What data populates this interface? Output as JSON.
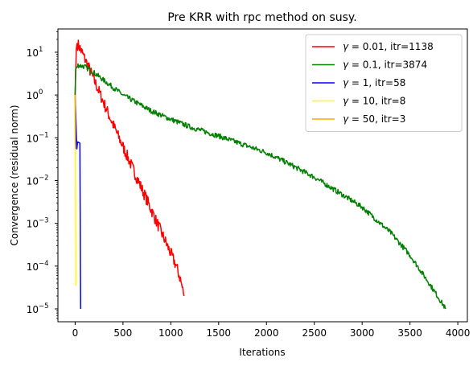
{
  "chart_data": {
    "type": "line",
    "title": "Pre KRR with rpc method on susy.",
    "xlabel": "Iterations",
    "ylabel": "Convergence (residual norm)",
    "xlim": [
      -180,
      4100
    ],
    "ylim": [
      5e-06,
      35
    ],
    "yscale": "log",
    "x_ticks": [
      0,
      500,
      1000,
      1500,
      2000,
      2500,
      3000,
      3500,
      4000
    ],
    "y_ticks": [
      1e-05,
      0.0001,
      0.001,
      0.01,
      0.1,
      1,
      10
    ],
    "x_tick_labels": [
      "0",
      "500",
      "1000",
      "1500",
      "2000",
      "2500",
      "3000",
      "3500",
      "4000"
    ],
    "y_tick_labels": [
      {
        "base": "10",
        "exp": "−5"
      },
      {
        "base": "10",
        "exp": "−4"
      },
      {
        "base": "10",
        "exp": "−3"
      },
      {
        "base": "10",
        "exp": "−2"
      },
      {
        "base": "10",
        "exp": "−1"
      },
      {
        "base": "10",
        "exp": "0"
      },
      {
        "base": "10",
        "exp": "1"
      }
    ],
    "grid": false,
    "legend_position": "top-right",
    "series": [
      {
        "name_symbol": "γ",
        "name_rest": " = 0.01, itr=1138",
        "color": "#ff0000",
        "noise": 0.14,
        "points": [
          [
            0,
            1.0
          ],
          [
            12,
            12
          ],
          [
            20,
            16
          ],
          [
            40,
            14
          ],
          [
            80,
            9
          ],
          [
            150,
            4
          ],
          [
            250,
            1.2
          ],
          [
            350,
            0.35
          ],
          [
            450,
            0.11
          ],
          [
            550,
            0.035
          ],
          [
            650,
            0.011
          ],
          [
            750,
            0.0035
          ],
          [
            850,
            0.0011
          ],
          [
            950,
            0.00035
          ],
          [
            1050,
            0.00011
          ],
          [
            1100,
            5e-05
          ],
          [
            1138,
            2e-05
          ]
        ]
      },
      {
        "name_symbol": "γ",
        "name_rest": " = 0.1, itr=3874",
        "color": "#008000",
        "noise": 0.06,
        "points": [
          [
            0,
            1.0
          ],
          [
            5,
            4.0
          ],
          [
            30,
            5.0
          ],
          [
            100,
            4.6
          ],
          [
            200,
            3.3
          ],
          [
            300,
            2.2
          ],
          [
            500,
            1.0
          ],
          [
            800,
            0.42
          ],
          [
            1000,
            0.27
          ],
          [
            1200,
            0.18
          ],
          [
            1500,
            0.11
          ],
          [
            2000,
            0.045
          ],
          [
            2200,
            0.027
          ],
          [
            2500,
            0.012
          ],
          [
            3000,
            0.0024
          ],
          [
            3300,
            0.0006
          ],
          [
            3500,
            0.00018
          ],
          [
            3700,
            4e-05
          ],
          [
            3874,
            1e-05
          ]
        ]
      },
      {
        "name_symbol": "γ",
        "name_rest": " = 1, itr=58",
        "color": "#0000ff",
        "noise": 0,
        "points": [
          [
            0,
            1.0
          ],
          [
            10,
            0.2
          ],
          [
            18,
            0.055
          ],
          [
            25,
            0.08
          ],
          [
            50,
            0.075
          ],
          [
            55,
            0.0001
          ],
          [
            58,
            1e-05
          ]
        ]
      },
      {
        "name_symbol": "γ",
        "name_rest": " = 10, itr=8",
        "color": "#ffff00",
        "noise": 0,
        "points": [
          [
            0,
            1.0
          ],
          [
            4,
            0.01
          ],
          [
            8,
            3.5e-05
          ]
        ]
      },
      {
        "name_symbol": "γ",
        "name_rest": " = 50, itr=3",
        "color": "#ffa500",
        "noise": 0,
        "points": [
          [
            0,
            1.0
          ],
          [
            3,
            0.055
          ]
        ]
      }
    ]
  }
}
